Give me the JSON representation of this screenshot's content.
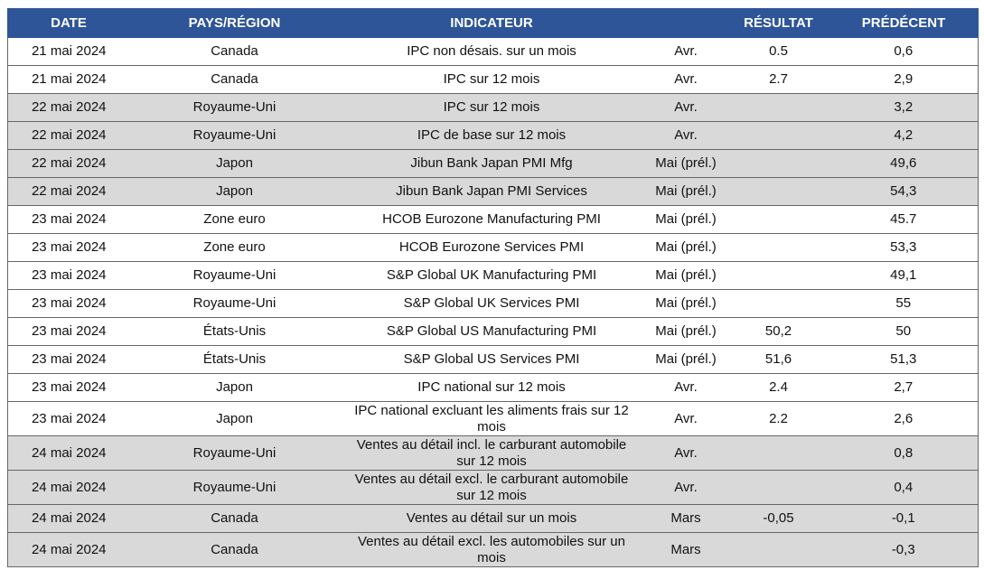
{
  "table": {
    "header": [
      "DATE",
      "PAYS/RÉGION",
      "INDICATEUR",
      "RÉSULTAT",
      "PRÉDÉCENT"
    ],
    "rows": [
      {
        "date": "21 mai 2024",
        "region": "Canada",
        "indicator": "IPC non désais. sur un mois",
        "period": "Avr.",
        "result": "0.5",
        "previous": "0,6"
      },
      {
        "date": "21 mai 2024",
        "region": "Canada",
        "indicator": "IPC sur 12 mois",
        "period": "Avr.",
        "result": "2.7",
        "previous": "2,9"
      },
      {
        "date": "22 mai 2024",
        "region": "Royaume-Uni",
        "indicator": "IPC sur 12 mois",
        "period": "Avr.",
        "previous": "3,2"
      },
      {
        "date": "22 mai 2024",
        "region": "Royaume-Uni",
        "indicator": "IPC de base sur 12 mois",
        "period": "Avr.",
        "previous": "4,2"
      },
      {
        "date": "22 mai 2024",
        "region": "Japon",
        "indicator": "Jibun Bank Japan PMI Mfg",
        "period": "Mai (prél.)",
        "previous": "49,6"
      },
      {
        "date": "22 mai 2024",
        "region": "Japon",
        "indicator": "Jibun Bank Japan PMI Services",
        "period": "Mai (prél.)",
        "previous": "54,3"
      },
      {
        "date": "23 mai 2024",
        "region": "Zone euro",
        "indicator": "HCOB Eurozone Manufacturing PMI",
        "period": "Mai (prél.)",
        "previous": "45.7"
      },
      {
        "date": "23 mai 2024",
        "region": "Zone euro",
        "indicator": "HCOB Eurozone Services PMI",
        "period": "Mai (prél.)",
        "previous": "53,3"
      },
      {
        "date": "23 mai 2024",
        "region": "Royaume-Uni",
        "indicator": "S&P Global UK Manufacturing PMI",
        "period": "Mai (prél.)",
        "previous": "49,1"
      },
      {
        "date": "23 mai 2024",
        "region": "Royaume-Uni",
        "indicator": "S&P Global UK Services PMI",
        "period": "Mai (prél.)",
        "previous": "55"
      },
      {
        "date": "23 mai 2024",
        "region": "États-Unis",
        "indicator": "S&P Global US Manufacturing PMI",
        "period": "Mai (prél.)",
        "result": "50,2",
        "previous": "50"
      },
      {
        "date": "23 mai 2024",
        "region": "États-Unis",
        "indicator": "S&P Global US Services PMI",
        "period": "Mai (prél.)",
        "result": "51,6",
        "previous": "51,3"
      },
      {
        "date": "23 mai 2024",
        "region": "Japon",
        "indicator": "IPC national sur 12 mois",
        "period": "Avr.",
        "result": "2.4",
        "previous": "2,7"
      },
      {
        "date": "23 mai 2024",
        "region": "Japon",
        "indicator": "IPC national excluant les aliments frais sur 12 mois",
        "period": "Avr.",
        "result": "2.2",
        "previous": "2,6"
      },
      {
        "date": "24 mai 2024",
        "region": "Royaume-Uni",
        "indicator": "Ventes au détail incl. le carburant automobile sur 12 mois",
        "period": "Avr.",
        "previous": "0,8"
      },
      {
        "date": "24 mai 2024",
        "region": "Royaume-Uni",
        "indicator": "Ventes au détail excl. le carburant automobile sur 12 mois",
        "period": "Avr.",
        "previous": "0,4"
      },
      {
        "date": "24 mai 2024",
        "region": "Canada",
        "indicator": "Ventes au détail sur un mois",
        "period": "Mars",
        "result": "-0,05",
        "previous": "-0,1"
      },
      {
        "date": "24 mai 2024",
        "region": "Canada",
        "indicator": "Ventes au détail excl. les automobiles sur un mois",
        "period": "Mars",
        "previous": "-0,3"
      }
    ]
  }
}
